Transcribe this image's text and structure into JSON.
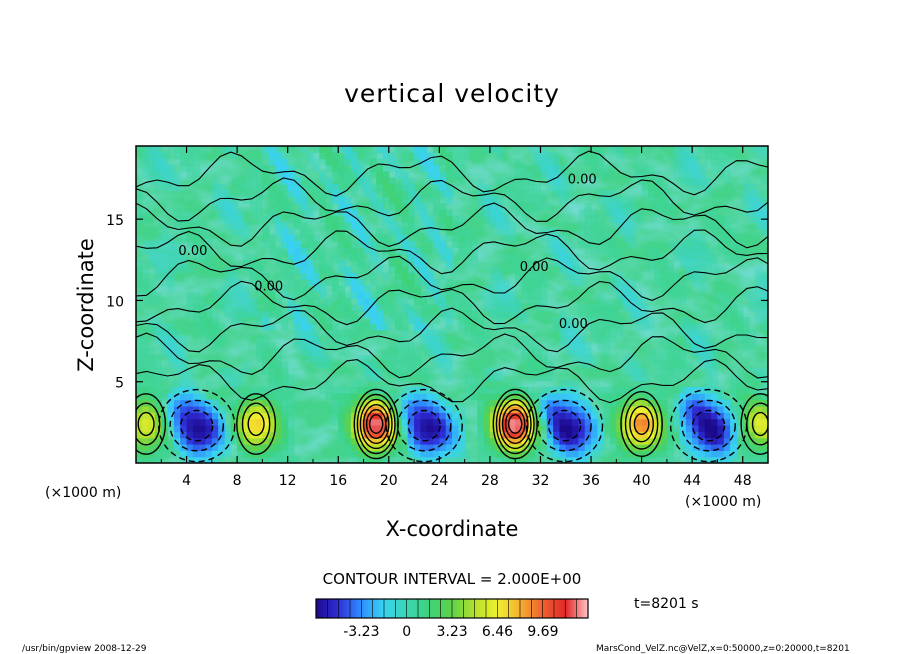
{
  "chart_data": {
    "type": "heatmap",
    "title": "vertical velocity",
    "xlabel": "X-coordinate",
    "ylabel": "Z-coordinate",
    "x_unit_left": "(×1000 m)",
    "x_unit_right": "(×1000 m)",
    "xlim": [
      0,
      50
    ],
    "ylim": [
      0,
      19.5
    ],
    "x_ticks": [
      "4",
      "8",
      "12",
      "16",
      "20",
      "24",
      "28",
      "32",
      "36",
      "40",
      "44",
      "48"
    ],
    "x_tick_values": [
      4,
      8,
      12,
      16,
      20,
      24,
      28,
      32,
      36,
      40,
      44,
      48
    ],
    "y_ticks": [
      "5",
      "10",
      "15"
    ],
    "y_tick_values": [
      5,
      10,
      15
    ],
    "contour_interval_text": "CONTOUR INTERVAL = 2.000E+00",
    "contour_labels": [
      "0.00",
      "0.00",
      "0.00",
      "0.00",
      "0.00"
    ],
    "contour_label_positions": [
      [
        4.5,
        12.8
      ],
      [
        10.5,
        10.6
      ],
      [
        31.5,
        11.8
      ],
      [
        34.6,
        8.3
      ],
      [
        35.3,
        17.2
      ]
    ],
    "colorbar": {
      "min": -6.46,
      "max": 12.9,
      "tick_labels": [
        "-3.23",
        "0",
        "3.23",
        "6.46",
        "9.69"
      ],
      "tick_values": [
        -3.23,
        0,
        3.23,
        6.46,
        9.69
      ],
      "colors": [
        "#1c0a8c",
        "#2f2fd8",
        "#2f8fff",
        "#3ad2f2",
        "#3bd6b4",
        "#3fd27a",
        "#5fd24a",
        "#b4e02c",
        "#f0f030",
        "#f5b030",
        "#f06030",
        "#e02828",
        "#ffc4c4"
      ]
    },
    "updraft_centers_x": [
      0.8,
      9.5,
      19.0,
      30.0,
      40.0,
      49.4
    ],
    "downdraft_centers_x": [
      5.2,
      23.2,
      34.3,
      45.7
    ],
    "time_label": "t=8201 s"
  },
  "footer": {
    "left": "/usr/bin/gpview   2008-12-29",
    "right": "MarsCond_VelZ.nc@VelZ,x=0:50000,z=0:20000,t=8201"
  }
}
